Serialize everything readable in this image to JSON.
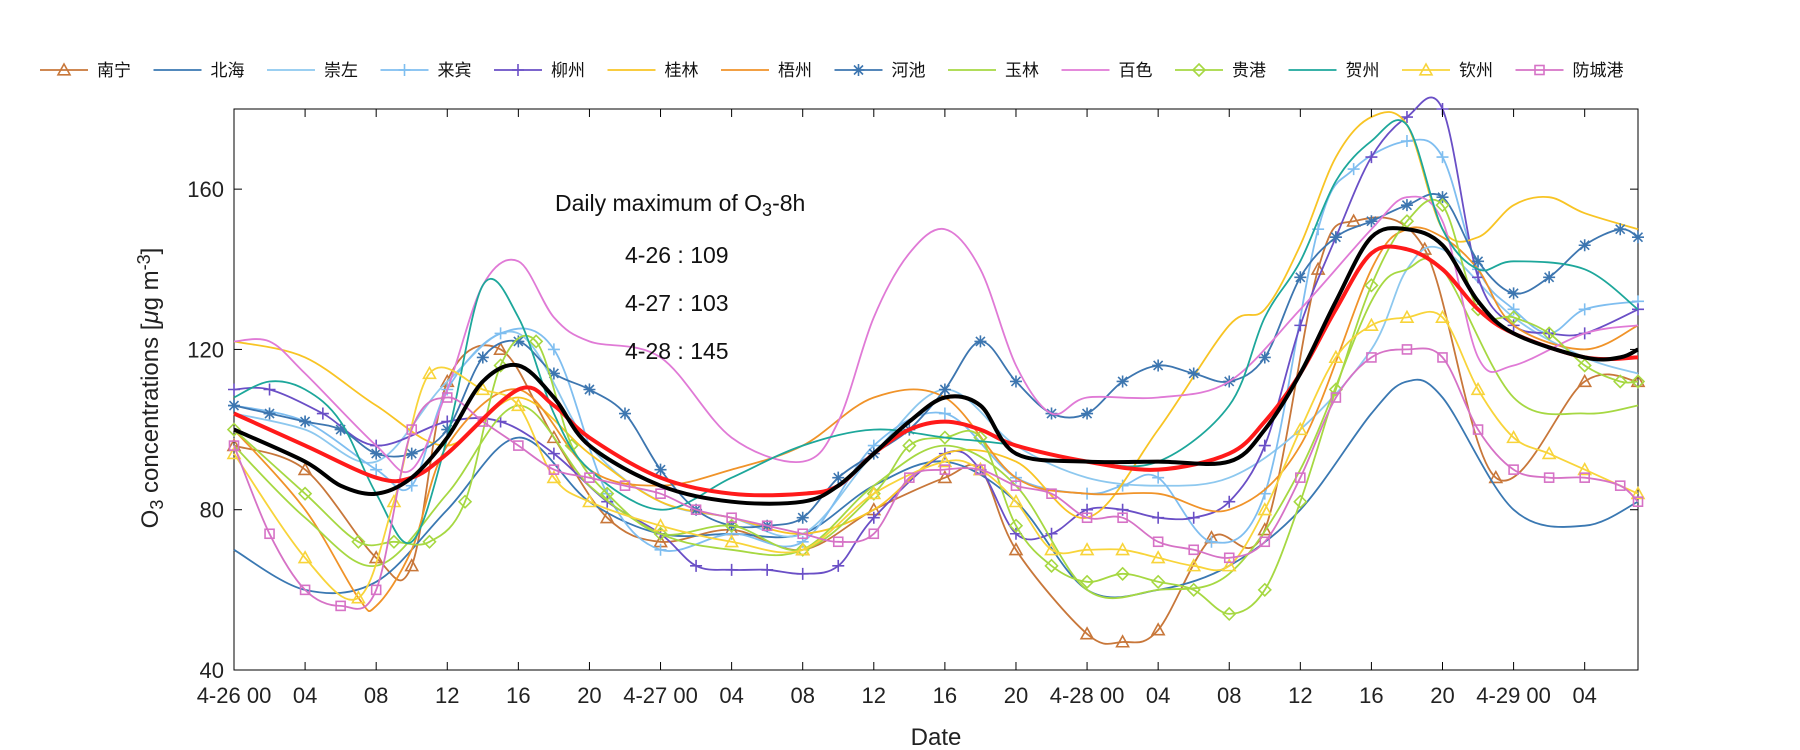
{
  "chart_data": {
    "type": "line",
    "title": "",
    "xlabel": "Date",
    "ylabel": "O3 concentrations [μg m-3]",
    "ylabel_parts": {
      "main": "O",
      "sub": "3",
      "rest": " concentrations [",
      "mu": "μ",
      "unit": "g m",
      "sup": "-3",
      "close": "]"
    },
    "xlim": [
      0,
      79
    ],
    "ylim": [
      40,
      180
    ],
    "yticks": [
      40,
      80,
      120,
      160
    ],
    "ytick_labels": [
      "40",
      "80",
      "120",
      "160"
    ],
    "xticks": [
      0,
      4,
      8,
      12,
      16,
      20,
      24,
      28,
      32,
      36,
      40,
      44,
      48,
      52,
      56,
      60,
      64,
      68,
      72,
      76
    ],
    "xtick_labels": [
      "4-26 00",
      "04",
      "08",
      "12",
      "16",
      "20",
      "4-27 00",
      "04",
      "08",
      "12",
      "16",
      "20",
      "4-28 00",
      "04",
      "08",
      "12",
      "16",
      "20",
      "4-29 00",
      "04"
    ],
    "annotation": {
      "heading_main": "Daily maximum of O",
      "heading_sub": "3",
      "heading_rest": "-8h",
      "lines": [
        "4-26 : 109",
        "4-27 : 103",
        "4-28 : 145"
      ]
    },
    "key_points": [
      {
        "name": "南宁",
        "color": "#c8773a",
        "marker": "triangle",
        "x": [
          0,
          4,
          8,
          10,
          12,
          15,
          18,
          21,
          24,
          28,
          32,
          36,
          40,
          42,
          44,
          48,
          50,
          52,
          55,
          58,
          61,
          63,
          67,
          71,
          76,
          79
        ],
        "y": [
          96,
          90,
          68,
          66,
          112,
          120,
          98,
          78,
          72,
          75,
          70,
          80,
          88,
          90,
          70,
          49,
          47,
          50,
          73,
          75,
          140,
          152,
          145,
          88,
          112,
          112
        ]
      },
      {
        "name": "北海",
        "color": "#3a78b2",
        "marker": "none",
        "x": [
          0,
          4,
          8,
          12,
          16,
          20,
          24,
          28,
          32,
          36,
          40,
          44,
          48,
          52,
          56,
          60,
          64,
          66,
          68,
          72,
          76,
          79
        ],
        "y": [
          70,
          60,
          62,
          80,
          98,
          82,
          74,
          74,
          74,
          86,
          92,
          82,
          60,
          60,
          66,
          80,
          104,
          112,
          108,
          80,
          76,
          82
        ]
      },
      {
        "name": "崇左",
        "color": "#8dc8ef",
        "marker": "none",
        "x": [
          0,
          4,
          8,
          12,
          16,
          20,
          24,
          28,
          32,
          36,
          40,
          44,
          48,
          52,
          56,
          60,
          64,
          66,
          68,
          72,
          76,
          79
        ],
        "y": [
          104,
          100,
          92,
          112,
          124,
          96,
          82,
          78,
          74,
          94,
          110,
          96,
          88,
          86,
          88,
          100,
          120,
          140,
          145,
          128,
          118,
          114
        ]
      },
      {
        "name": "来宾",
        "color": "#7fbef0",
        "marker": "plus",
        "x": [
          0,
          4,
          8,
          10,
          12,
          15,
          18,
          21,
          24,
          28,
          32,
          36,
          40,
          44,
          48,
          50,
          52,
          55,
          58,
          61,
          63,
          66,
          68,
          70,
          72,
          74,
          76,
          79
        ],
        "y": [
          106,
          102,
          90,
          86,
          110,
          124,
          120,
          84,
          70,
          74,
          72,
          96,
          104,
          88,
          84,
          86,
          88,
          72,
          84,
          150,
          165,
          172,
          168,
          140,
          130,
          124,
          130,
          132
        ]
      },
      {
        "name": "柳州",
        "color": "#6a4fc6",
        "marker": "plus",
        "x": [
          0,
          2,
          5,
          8,
          12,
          15,
          18,
          21,
          24,
          26,
          28,
          30,
          32,
          34,
          36,
          40,
          42,
          44,
          46,
          48,
          50,
          52,
          54,
          56,
          58,
          60,
          62,
          64,
          66,
          68,
          70,
          72,
          74,
          76,
          79
        ],
        "y": [
          110,
          110,
          104,
          96,
          102,
          102,
          94,
          82,
          74,
          66,
          65,
          65,
          64,
          66,
          78,
          94,
          90,
          74,
          74,
          80,
          80,
          78,
          78,
          82,
          96,
          126,
          148,
          168,
          178,
          180,
          138,
          126,
          124,
          124,
          130
        ]
      },
      {
        "name": "桂林",
        "color": "#f8c424",
        "marker": "none",
        "x": [
          0,
          4,
          8,
          12,
          16,
          20,
          24,
          28,
          32,
          36,
          40,
          44,
          48,
          52,
          56,
          58,
          60,
          62,
          64,
          66,
          68,
          70,
          72,
          74,
          76,
          79
        ],
        "y": [
          122,
          118,
          106,
          96,
          108,
          94,
          82,
          78,
          74,
          80,
          94,
          92,
          78,
          100,
          126,
          130,
          146,
          168,
          178,
          176,
          150,
          148,
          156,
          158,
          154,
          150
        ]
      },
      {
        "name": "梧州",
        "color": "#f09329",
        "marker": "none",
        "x": [
          0,
          4,
          7,
          8,
          10,
          12,
          16,
          20,
          24,
          28,
          32,
          36,
          40,
          44,
          48,
          52,
          56,
          60,
          64,
          66,
          68,
          70,
          72,
          76,
          79
        ],
        "y": [
          100,
          80,
          58,
          56,
          70,
          96,
          110,
          90,
          86,
          90,
          96,
          108,
          108,
          88,
          84,
          84,
          80,
          96,
          140,
          150,
          148,
          140,
          126,
          120,
          126
        ]
      },
      {
        "name": "河池",
        "color": "#3d76b0",
        "marker": "star",
        "x": [
          0,
          2,
          4,
          6,
          8,
          10,
          12,
          14,
          16,
          18,
          20,
          22,
          24,
          26,
          28,
          30,
          32,
          34,
          36,
          38,
          40,
          42,
          44,
          46,
          48,
          50,
          52,
          54,
          56,
          58,
          60,
          62,
          64,
          66,
          68,
          70,
          72,
          74,
          76,
          78,
          79
        ],
        "y": [
          106,
          104,
          102,
          100,
          94,
          94,
          100,
          118,
          122,
          114,
          110,
          104,
          90,
          80,
          76,
          76,
          78,
          88,
          94,
          100,
          110,
          122,
          112,
          104,
          104,
          112,
          116,
          114,
          112,
          118,
          138,
          148,
          152,
          156,
          158,
          142,
          134,
          138,
          146,
          150,
          148
        ]
      },
      {
        "name": "玉林",
        "color": "#a6d842",
        "marker": "none",
        "x": [
          0,
          4,
          8,
          12,
          16,
          20,
          24,
          28,
          32,
          36,
          40,
          44,
          48,
          52,
          56,
          60,
          64,
          66,
          68,
          72,
          76,
          79
        ],
        "y": [
          96,
          78,
          66,
          84,
          106,
          86,
          74,
          70,
          70,
          86,
          96,
          86,
          60,
          60,
          64,
          90,
          132,
          140,
          140,
          108,
          104,
          106
        ]
      },
      {
        "name": "百色",
        "color": "#e07ad6",
        "marker": "none",
        "x": [
          0,
          2,
          4,
          8,
          10,
          12,
          14,
          16,
          18,
          20,
          24,
          28,
          32,
          34,
          36,
          38,
          40,
          42,
          44,
          46,
          48,
          52,
          56,
          60,
          64,
          66,
          68,
          70,
          72,
          76,
          79
        ],
        "y": [
          122,
          122,
          114,
          96,
          90,
          110,
          136,
          142,
          128,
          122,
          118,
          98,
          92,
          102,
          128,
          144,
          150,
          140,
          116,
          104,
          108,
          108,
          112,
          130,
          150,
          158,
          152,
          118,
          116,
          124,
          126
        ]
      },
      {
        "name": "贵港",
        "color": "#a6d842",
        "marker": "diamond",
        "x": [
          0,
          4,
          7,
          9,
          11,
          13,
          15,
          17,
          19,
          21,
          24,
          28,
          32,
          36,
          38,
          40,
          42,
          44,
          46,
          48,
          50,
          52,
          54,
          56,
          58,
          60,
          62,
          64,
          66,
          68,
          70,
          72,
          74,
          76,
          78,
          79
        ],
        "y": [
          100,
          84,
          72,
          72,
          72,
          82,
          116,
          122,
          96,
          84,
          74,
          76,
          70,
          84,
          96,
          98,
          98,
          76,
          66,
          62,
          64,
          62,
          60,
          54,
          60,
          82,
          110,
          136,
          152,
          156,
          130,
          128,
          124,
          116,
          112,
          112
        ]
      },
      {
        "name": "贺州",
        "color": "#1da79b",
        "marker": "none",
        "x": [
          0,
          2,
          4,
          6,
          8,
          10,
          12,
          14,
          16,
          18,
          20,
          24,
          28,
          32,
          36,
          40,
          44,
          48,
          52,
          56,
          58,
          60,
          62,
          64,
          66,
          68,
          70,
          72,
          76,
          79
        ],
        "y": [
          108,
          112,
          110,
          102,
          84,
          72,
          98,
          136,
          128,
          104,
          90,
          80,
          88,
          96,
          100,
          98,
          96,
          92,
          92,
          106,
          128,
          142,
          162,
          172,
          176,
          150,
          140,
          142,
          140,
          130
        ]
      },
      {
        "name": "钦州",
        "color": "#f8d43a",
        "marker": "triangle",
        "x": [
          0,
          4,
          7,
          9,
          11,
          14,
          16,
          18,
          20,
          24,
          28,
          32,
          36,
          40,
          42,
          44,
          46,
          48,
          50,
          52,
          54,
          56,
          58,
          60,
          62,
          64,
          66,
          68,
          70,
          72,
          74,
          76,
          79
        ],
        "y": [
          94,
          68,
          58,
          82,
          114,
          110,
          106,
          88,
          82,
          76,
          72,
          70,
          84,
          92,
          90,
          82,
          70,
          70,
          70,
          68,
          66,
          66,
          80,
          100,
          118,
          126,
          128,
          128,
          110,
          98,
          94,
          90,
          84
        ]
      },
      {
        "name": "防城港",
        "color": "#d672c6",
        "marker": "square",
        "x": [
          0,
          2,
          4,
          6,
          8,
          10,
          12,
          14,
          16,
          18,
          20,
          22,
          24,
          26,
          28,
          30,
          32,
          34,
          36,
          38,
          40,
          42,
          44,
          46,
          48,
          50,
          52,
          54,
          56,
          58,
          60,
          62,
          64,
          66,
          68,
          70,
          72,
          74,
          76,
          78,
          79
        ],
        "y": [
          96,
          74,
          60,
          56,
          60,
          100,
          108,
          102,
          96,
          90,
          88,
          86,
          84,
          80,
          78,
          76,
          74,
          72,
          74,
          88,
          90,
          90,
          86,
          84,
          78,
          78,
          72,
          70,
          68,
          72,
          88,
          108,
          118,
          120,
          118,
          100,
          90,
          88,
          88,
          86,
          82
        ]
      },
      {
        "name": "mean_red",
        "color": "#ff1a1a",
        "marker": "none",
        "x": [
          0,
          4,
          8,
          10,
          12,
          16,
          18,
          20,
          24,
          28,
          32,
          34,
          36,
          38,
          40,
          42,
          44,
          48,
          52,
          56,
          58,
          60,
          62,
          64,
          66,
          68,
          70,
          72,
          76,
          79
        ],
        "y": [
          104,
          96,
          88,
          88,
          94,
          110,
          106,
          98,
          88,
          84,
          84,
          86,
          94,
          100,
          102,
          100,
          96,
          92,
          90,
          94,
          102,
          114,
          130,
          144,
          145,
          140,
          130,
          124,
          118,
          118
        ]
      },
      {
        "name": "mean_black",
        "color": "#000000",
        "marker": "none",
        "x": [
          0,
          4,
          6,
          8,
          10,
          12,
          14,
          16,
          18,
          20,
          24,
          28,
          32,
          34,
          36,
          38,
          40,
          42,
          44,
          48,
          52,
          56,
          58,
          60,
          62,
          64,
          66,
          68,
          70,
          72,
          76,
          78,
          79
        ],
        "y": [
          100,
          92,
          86,
          84,
          88,
          98,
          112,
          116,
          108,
          96,
          86,
          82,
          82,
          86,
          94,
          102,
          108,
          106,
          94,
          92,
          92,
          92,
          100,
          114,
          132,
          148,
          150,
          146,
          132,
          124,
          118,
          118,
          120
        ]
      }
    ],
    "legend": [
      "南宁",
      "北海",
      "崇左",
      "来宾",
      "柳州",
      "桂林",
      "梧州",
      "河池",
      "玉林",
      "百色",
      "贵港",
      "贺州",
      "钦州",
      "防城港"
    ],
    "legend_placement": "top"
  }
}
